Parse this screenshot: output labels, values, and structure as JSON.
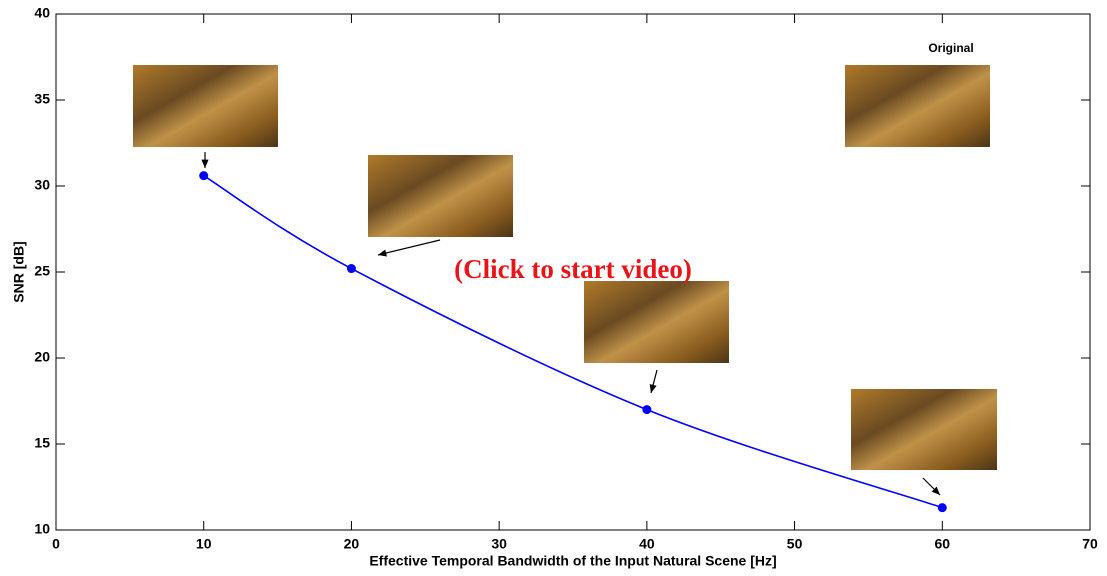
{
  "chart_data": {
    "type": "line",
    "xlabel": "Effective Temporal Bandwidth of the Input Natural Scene [Hz]",
    "ylabel": "SNR [dB]",
    "annotations": [
      "Original",
      "(Click to start video)"
    ],
    "series": [
      {
        "color": "#0000ff",
        "x": [
          10,
          20,
          40,
          60
        ],
        "values": [
          30.6,
          25.2,
          17.0,
          11.3
        ]
      }
    ],
    "xlim": [
      0,
      70
    ],
    "xticks": [
      0,
      10,
      20,
      30,
      40,
      50,
      60,
      70
    ],
    "ylim": [
      10,
      40
    ],
    "yticks": [
      10,
      15,
      20,
      25,
      30,
      35,
      40
    ],
    "grid": false
  }
}
